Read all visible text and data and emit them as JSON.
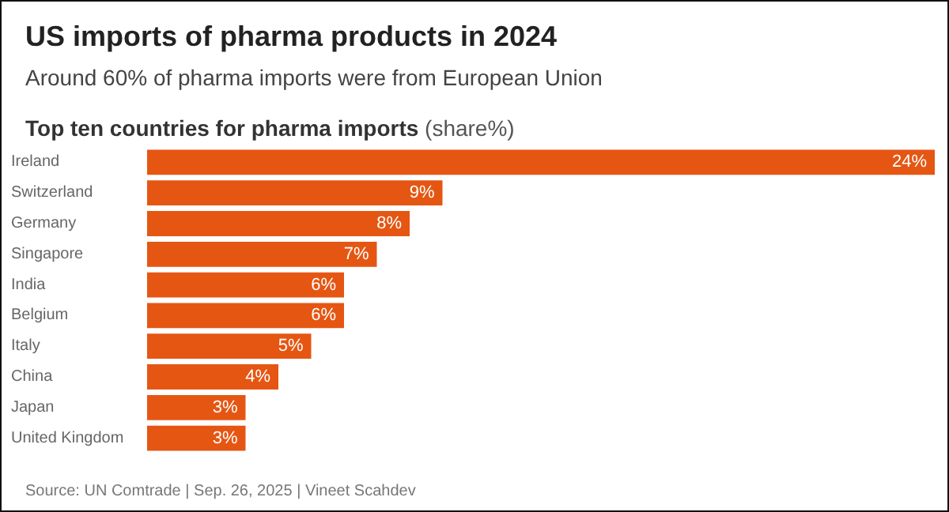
{
  "chart_data": {
    "type": "bar",
    "orientation": "horizontal",
    "title": "US imports of pharma products in 2024",
    "subtitle": "Around 60% of pharma imports were from European Union",
    "annotations": [
      "Top ten countries for pharma imports (share%)",
      "Source: UN Comtrade | Sep. 26, 2025 | Vineet Scahdev"
    ],
    "categories": [
      "Ireland",
      "Switzerland",
      "Germany",
      "Singapore",
      "India",
      "Belgium",
      "Italy",
      "China",
      "Japan",
      "United Kingdom"
    ],
    "values": [
      24,
      9,
      8,
      7,
      6,
      6,
      5,
      4,
      3,
      3
    ],
    "value_labels": [
      "24%",
      "9%",
      "8%",
      "7%",
      "6%",
      "6%",
      "5%",
      "4%",
      "3%",
      "3%"
    ],
    "color": "#e55613"
  }
}
